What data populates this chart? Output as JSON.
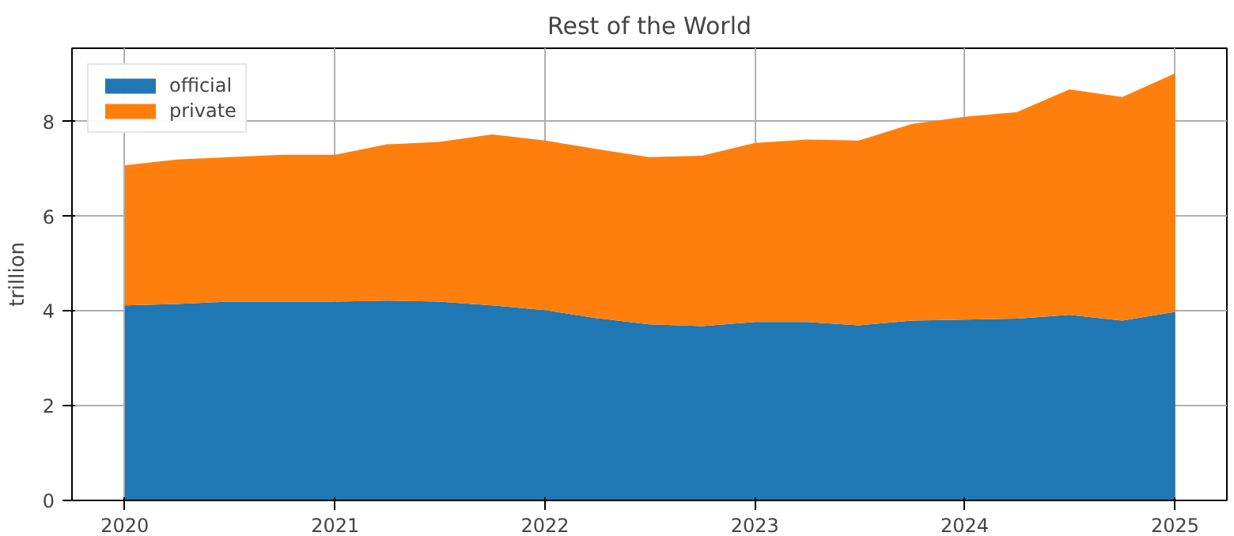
{
  "chart_data": {
    "type": "area",
    "stacked": true,
    "title": "Rest of the World",
    "ylabel": "trillion",
    "x": [
      "2020-01",
      "2020-04",
      "2020-07",
      "2020-10",
      "2021-01",
      "2021-04",
      "2021-07",
      "2021-10",
      "2022-01",
      "2022-04",
      "2022-07",
      "2022-10",
      "2023-01",
      "2023-04",
      "2023-07",
      "2023-10",
      "2024-01",
      "2024-04",
      "2024-07",
      "2024-10",
      "2025-01"
    ],
    "series": [
      {
        "name": "official",
        "color": "#1f77b4",
        "values": [
          4.12,
          4.15,
          4.2,
          4.2,
          4.2,
          4.22,
          4.2,
          4.12,
          4.02,
          3.85,
          3.72,
          3.68,
          3.77,
          3.77,
          3.7,
          3.8,
          3.82,
          3.84,
          3.92,
          3.8,
          3.98
        ]
      },
      {
        "name": "private",
        "color": "#ff7f0e",
        "values": [
          2.96,
          3.05,
          3.05,
          3.1,
          3.1,
          3.3,
          3.37,
          3.61,
          3.58,
          3.57,
          3.53,
          3.6,
          3.78,
          3.85,
          3.9,
          4.15,
          4.28,
          4.36,
          4.76,
          4.72,
          5.04
        ]
      }
    ],
    "xlim": [
      "2019-10",
      "2025-04"
    ],
    "ylim": [
      0,
      9.55
    ],
    "xticks": [
      "2020",
      "2021",
      "2022",
      "2023",
      "2024",
      "2025"
    ],
    "yticks": [
      0,
      2,
      4,
      6,
      8
    ],
    "grid": true,
    "legend": "top left"
  }
}
